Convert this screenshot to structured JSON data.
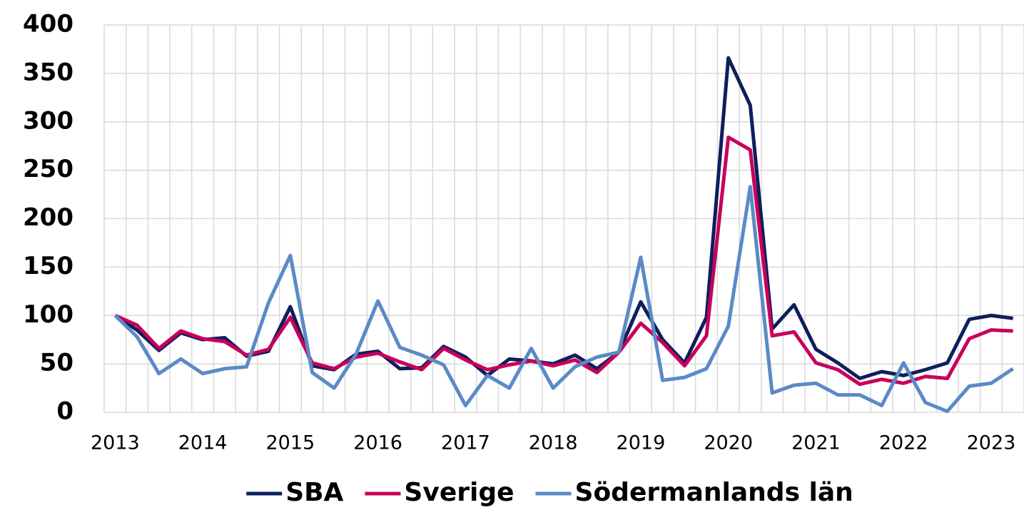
{
  "chart_data": {
    "type": "line",
    "categories": [
      "2013",
      null,
      null,
      null,
      "2014",
      null,
      null,
      null,
      "2015",
      null,
      null,
      null,
      "2016",
      null,
      null,
      null,
      "2017",
      null,
      null,
      null,
      "2018",
      null,
      null,
      null,
      "2019",
      null,
      null,
      null,
      "2020",
      null,
      null,
      null,
      "2021",
      null,
      null,
      null,
      "2022",
      null,
      null,
      null,
      "2023",
      null
    ],
    "series": [
      {
        "name": "SBA",
        "color": "#0d1f5c",
        "values": [
          100,
          85,
          64,
          82,
          75,
          77,
          58,
          63,
          109,
          48,
          44,
          60,
          63,
          45,
          46,
          68,
          57,
          38,
          55,
          53,
          50,
          59,
          45,
          62,
          114,
          75,
          51,
          98,
          366,
          317,
          86,
          111,
          65,
          51,
          35,
          42,
          38,
          44,
          51,
          96,
          100,
          97
        ]
      },
      {
        "name": "Sverige",
        "color": "#c8005a",
        "values": [
          100,
          90,
          66,
          84,
          76,
          73,
          59,
          65,
          98,
          51,
          45,
          57,
          61,
          52,
          44,
          66,
          54,
          44,
          49,
          53,
          48,
          54,
          41,
          62,
          92,
          72,
          48,
          79,
          284,
          271,
          79,
          83,
          51,
          44,
          29,
          34,
          30,
          37,
          35,
          76,
          85,
          84
        ]
      },
      {
        "name": "Södermanlands län",
        "color": "#5b8ac6",
        "values": [
          100,
          78,
          40,
          55,
          40,
          45,
          47,
          113,
          162,
          41,
          25,
          60,
          115,
          67,
          59,
          49,
          7,
          38,
          25,
          66,
          25,
          47,
          57,
          62,
          160,
          33,
          36,
          45,
          89,
          233,
          20,
          28,
          30,
          18,
          18,
          7,
          51,
          10,
          1,
          27,
          30,
          45
        ]
      }
    ],
    "ylim": [
      0,
      400
    ],
    "yticks": [
      0,
      50,
      100,
      150,
      200,
      250,
      300,
      350,
      400
    ],
    "grid": true,
    "legend": "bottom"
  }
}
